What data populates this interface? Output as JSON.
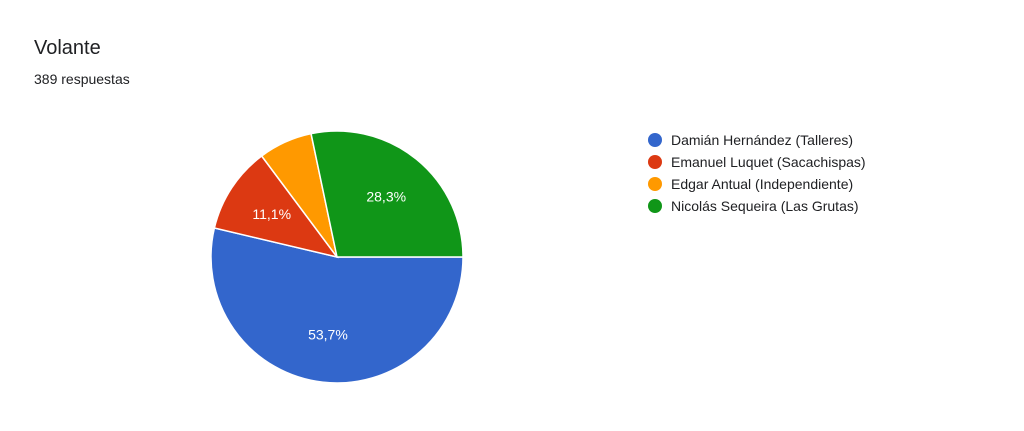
{
  "header": {
    "title": "Volante",
    "subtitle": "389 respuestas"
  },
  "chart_data": {
    "type": "pie",
    "title": "Volante",
    "subtitle": "389 respuestas",
    "legend_position": "right",
    "categories": [
      "Damián Hernández (Talleres)",
      "Emanuel Luquet (Sacachispas)",
      "Edgar Antual (Independiente)",
      "Nicolás Sequeira (Las Grutas)"
    ],
    "values": [
      53.7,
      11.1,
      6.9,
      28.3
    ],
    "value_labels": [
      "53,7%",
      "11,1%",
      "",
      "28,3%"
    ],
    "colors": [
      "#3366cc",
      "#dc3912",
      "#ff9900",
      "#109618"
    ]
  }
}
